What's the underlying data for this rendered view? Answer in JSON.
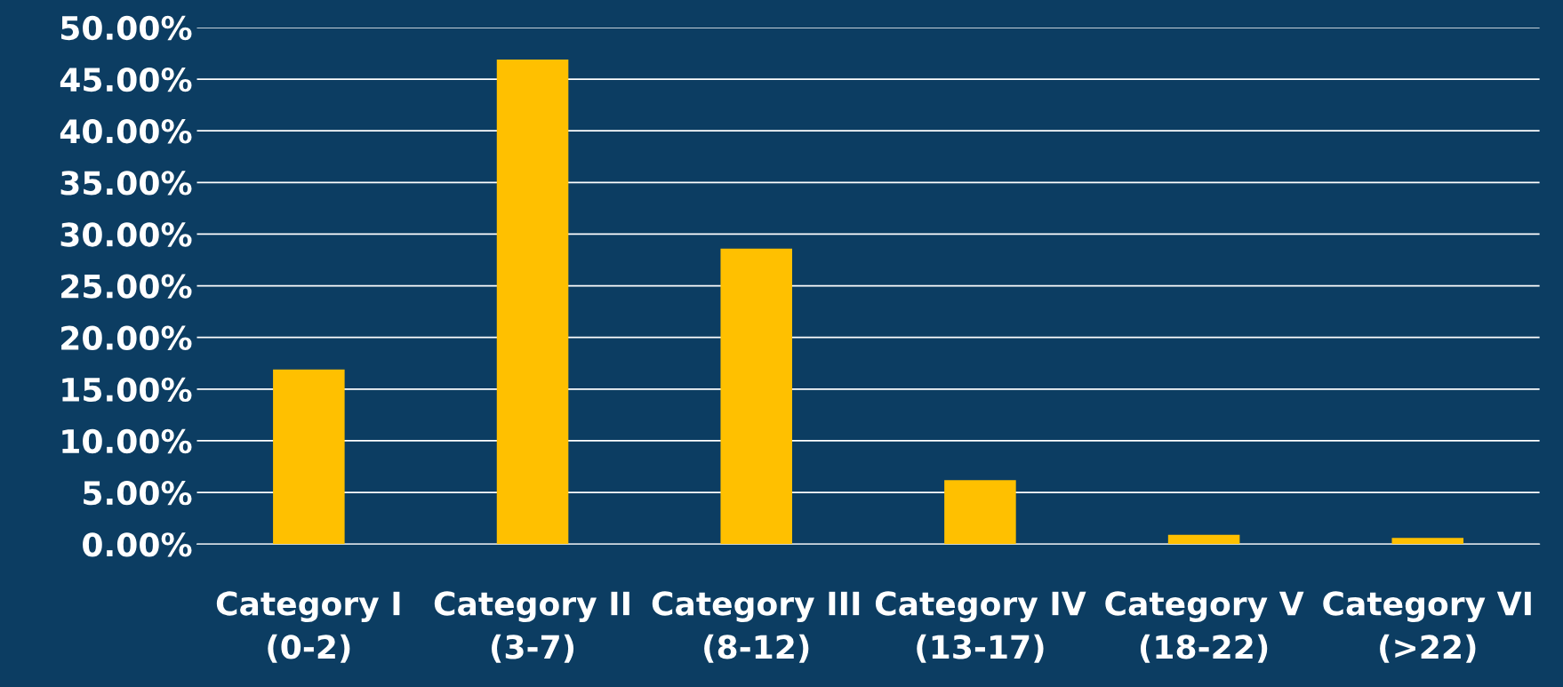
{
  "chart_data": {
    "type": "bar",
    "categories": [
      "Category I\n(0-2)",
      "Category II\n(3-7)",
      "Category III\n(8-12)",
      "Category IV\n(13-17)",
      "Category V\n(18-22)",
      "Category VI\n(>22)"
    ],
    "values": [
      16.9,
      46.9,
      28.6,
      6.2,
      0.9,
      0.6
    ],
    "color": "#ffc000",
    "ylim": [
      0,
      50
    ],
    "yticks": [
      {
        "value": 0,
        "label": "0.00%"
      },
      {
        "value": 5,
        "label": "5.00%"
      },
      {
        "value": 10,
        "label": "10.00%"
      },
      {
        "value": 15,
        "label": "15.00%"
      },
      {
        "value": 20,
        "label": "20.00%"
      },
      {
        "value": 25,
        "label": "25.00%"
      },
      {
        "value": 30,
        "label": "30.00%"
      },
      {
        "value": 35,
        "label": "35.00%"
      },
      {
        "value": 40,
        "label": "40.00%"
      },
      {
        "value": 45,
        "label": "45.00%"
      },
      {
        "value": 50,
        "label": "50.00%"
      }
    ],
    "grid": "y",
    "legend": false
  }
}
